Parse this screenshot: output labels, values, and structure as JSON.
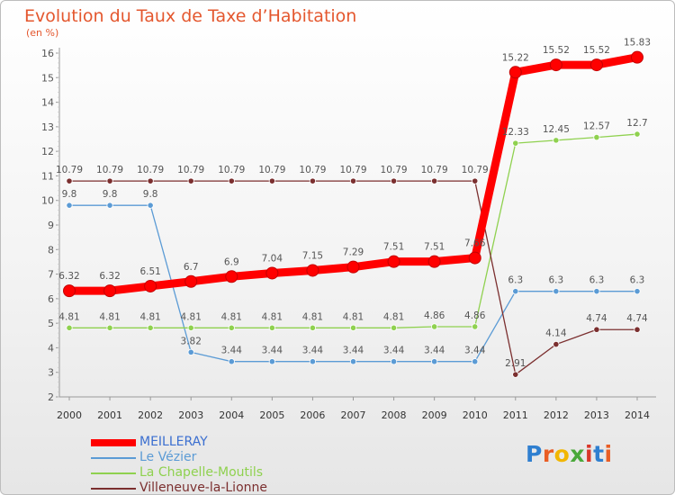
{
  "header": {
    "title": "Evolution du Taux de Taxe d’Habitation",
    "subtitle": "(en %)"
  },
  "colors": {
    "title": "#e4572e",
    "axis": "#9a9a9a",
    "grid": "#dcdcdc",
    "label": "#555555"
  },
  "logo": {
    "text": "Proxiti",
    "letters": [
      {
        "ch": "P",
        "color": "#2f7fd0"
      },
      {
        "ch": "r",
        "color": "#e95d24"
      },
      {
        "ch": "o",
        "color": "#f2b600"
      },
      {
        "ch": "x",
        "color": "#4aa83a"
      },
      {
        "ch": "i",
        "color": "#d9372a"
      },
      {
        "ch": "t",
        "color": "#2f7fd0"
      },
      {
        "ch": "i",
        "color": "#e95d24"
      }
    ]
  },
  "chart_data": {
    "type": "line",
    "title": "Evolution du Taux de Taxe d’Habitation",
    "ylabel": "(en %)",
    "xlabel": "",
    "ylim": [
      2,
      16
    ],
    "yticks": [
      2,
      3,
      4,
      5,
      6,
      7,
      8,
      9,
      10,
      11,
      12,
      13,
      14,
      15,
      16
    ],
    "grid": false,
    "legend_position": "bottom-left",
    "x": [
      "2000",
      "2001",
      "2002",
      "2003",
      "2004",
      "2005",
      "2006",
      "2007",
      "2008",
      "2009",
      "2010",
      "2011",
      "2012",
      "2013",
      "2014"
    ],
    "series": [
      {
        "name": "MEILLERAY",
        "color": "#ff0000",
        "emphasis": true,
        "values": [
          6.32,
          6.32,
          6.51,
          6.7,
          6.9,
          7.04,
          7.15,
          7.29,
          7.51,
          7.51,
          7.66,
          15.22,
          15.52,
          15.52,
          15.83
        ],
        "labels": [
          "6.32",
          "6.32",
          "6.51",
          "6.7",
          "6.9",
          "7.04",
          "7.15",
          "7.29",
          "7.51",
          "7.51",
          "7.66",
          "15.22",
          "15.52",
          "15.52",
          "15.83"
        ]
      },
      {
        "name": "Le Vézier",
        "color": "#5b9bd5",
        "emphasis": false,
        "values": [
          9.8,
          9.8,
          9.8,
          3.82,
          3.44,
          3.44,
          3.44,
          3.44,
          3.44,
          3.44,
          3.44,
          6.3,
          6.3,
          6.3,
          6.3
        ],
        "labels": [
          "9.8",
          "9.8",
          "9.8",
          "3.82",
          "3.44",
          "3.44",
          "3.44",
          "3.44",
          "3.44",
          "3.44",
          "3.44",
          "6.3",
          "6.3",
          "6.3",
          "6.3"
        ]
      },
      {
        "name": "La Chapelle-Moutils",
        "color": "#8fd14f",
        "emphasis": false,
        "values": [
          4.81,
          4.81,
          4.81,
          4.81,
          4.81,
          4.81,
          4.81,
          4.81,
          4.81,
          4.86,
          4.86,
          12.33,
          12.45,
          12.57,
          12.7
        ],
        "labels": [
          "4.81",
          "4.81",
          "4.81",
          "4.81",
          "4.81",
          "4.81",
          "4.81",
          "4.81",
          "4.81",
          "4.86",
          "4.86",
          "12.33",
          "12.45",
          "12.57",
          "12.7"
        ]
      },
      {
        "name": "Villeneuve-la-Lionne",
        "color": "#7b2f2f",
        "emphasis": false,
        "values": [
          10.79,
          10.79,
          10.79,
          10.79,
          10.79,
          10.79,
          10.79,
          10.79,
          10.79,
          10.79,
          10.79,
          2.91,
          4.14,
          4.74,
          4.74
        ],
        "labels": [
          "10.79",
          "10.79",
          "10.79",
          "10.79",
          "10.79",
          "10.79",
          "10.79",
          "10.79",
          "10.79",
          "10.79",
          "10.79",
          "2.91",
          "4.14",
          "4.74",
          "4.74"
        ]
      }
    ]
  }
}
